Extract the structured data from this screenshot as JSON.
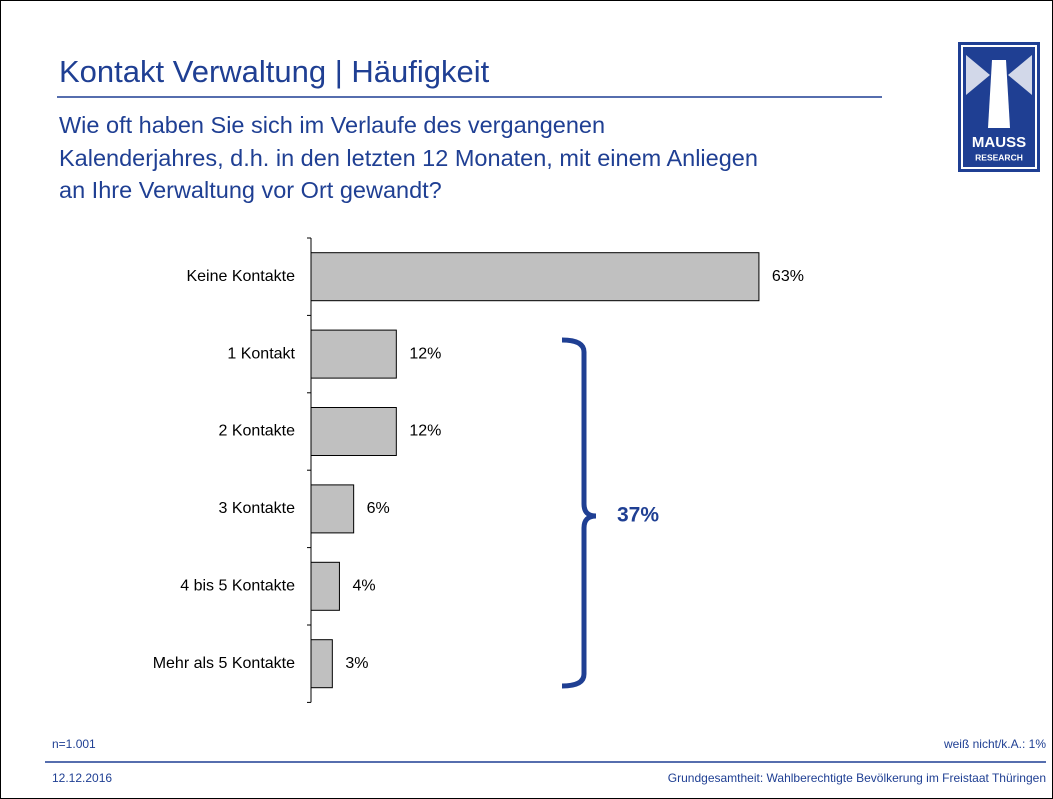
{
  "chart_data": {
    "type": "hbar",
    "title": "Kontakt Verwaltung | Häufigkeit",
    "subtitle": [
      "Wie oft haben Sie sich im Verlaufe des vergangenen",
      "Kalenderjahres, d.h. in den letzten 12 Monaten, mit einem Anliegen",
      "an Ihre Verwaltung vor Ort gewandt?"
    ],
    "categories": [
      "Keine Kontakte",
      "1 Kontakt",
      "2 Kontakte",
      "3 Kontakte",
      "4 bis 5 Kontakte",
      "Mehr als 5 Kontakte"
    ],
    "values": [
      63,
      12,
      12,
      6,
      4,
      3
    ],
    "value_labels": [
      "63%",
      "12%",
      "12%",
      "6%",
      "4%",
      "3%"
    ],
    "color": "#c0c0c0",
    "annotation": "37%"
  },
  "logo": [
    "MAUSS",
    "RESEARCH"
  ],
  "footer": {
    "sample": "n=1.001",
    "missing": "weiß nicht/k.A.: 1%",
    "date": "12.12.2016",
    "source": "Grundgesamtheit: Wahlberechtigte Bevölkerung im Freistaat Thüringen"
  }
}
